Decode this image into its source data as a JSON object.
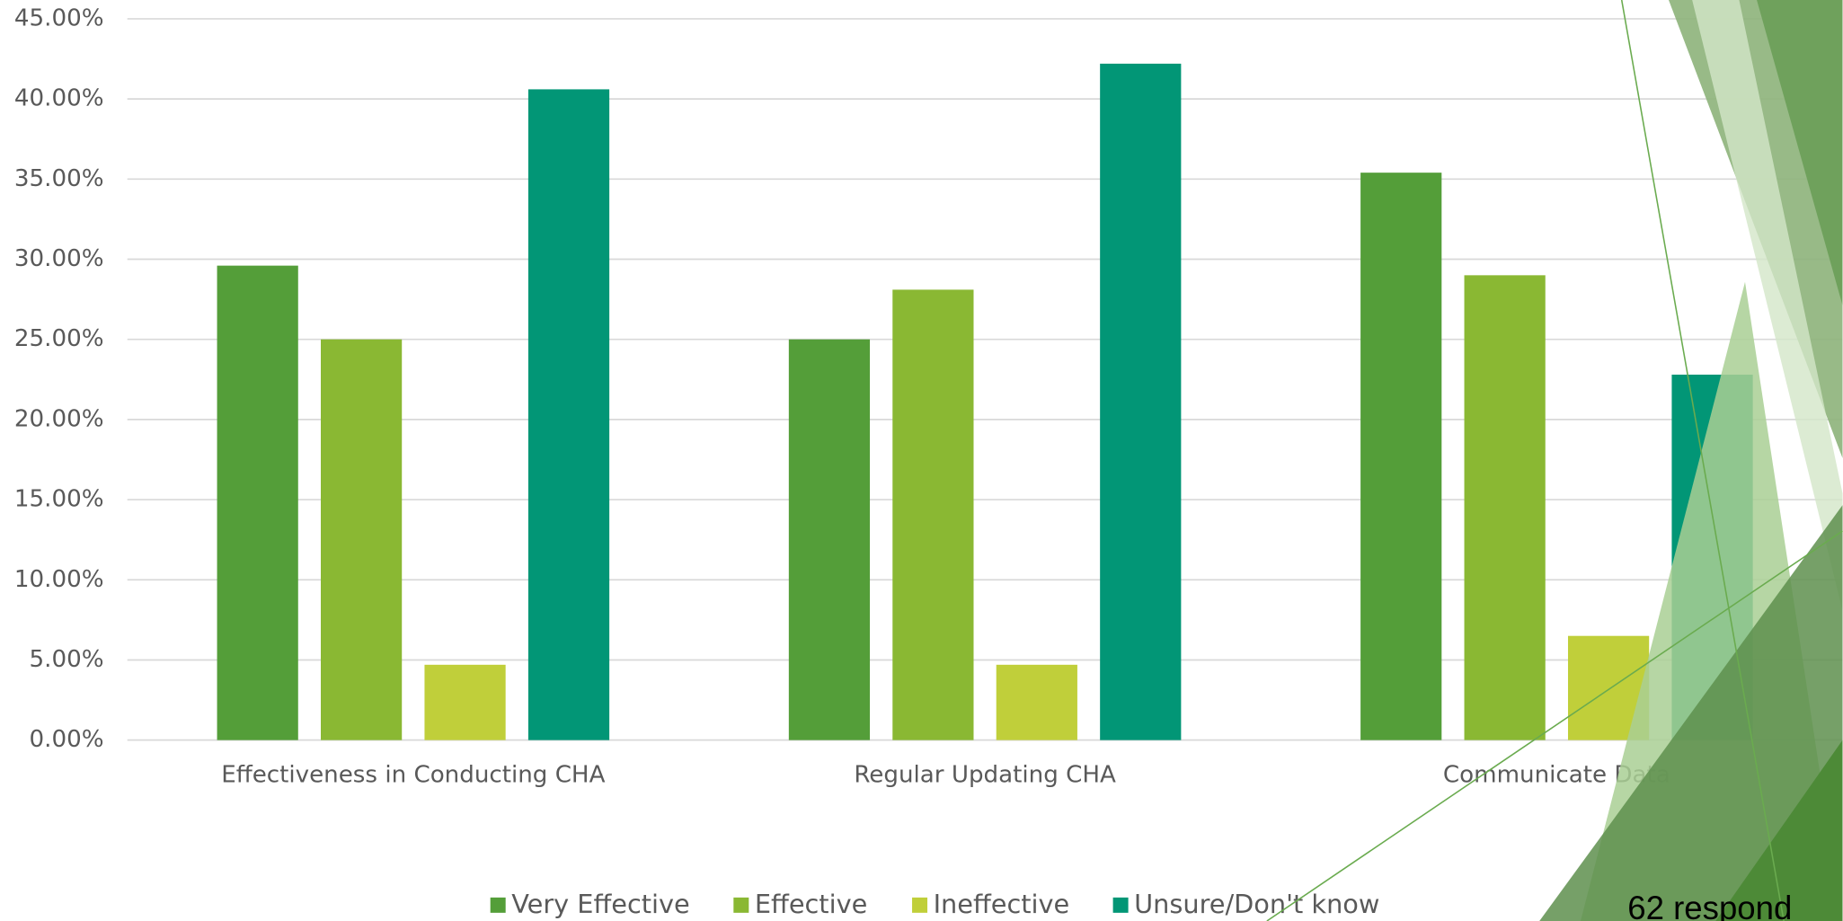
{
  "chart_data": {
    "type": "bar",
    "categories": [
      "Effectiveness in Conducting CHA",
      "Regular Updating CHA",
      "Communicate Data"
    ],
    "series": [
      {
        "name": "Very Effective",
        "color": "#549e39",
        "values": [
          29.6,
          25.0,
          35.4
        ]
      },
      {
        "name": "Effective",
        "color": "#8ab833",
        "values": [
          25.0,
          28.1,
          29.0
        ]
      },
      {
        "name": "Ineffective",
        "color": "#c0cf3a",
        "values": [
          4.7,
          4.7,
          6.5
        ]
      },
      {
        "name": "Unsure/Don't know",
        "color": "#029676",
        "values": [
          40.6,
          42.2,
          22.8
        ]
      }
    ],
    "ylim": [
      0,
      45
    ],
    "yticks": [
      {
        "value": 0,
        "label": "0.00%"
      },
      {
        "value": 5,
        "label": "5.00%"
      },
      {
        "value": 10,
        "label": "10.00%"
      },
      {
        "value": 15,
        "label": "15.00%"
      },
      {
        "value": 20,
        "label": "20.00%"
      },
      {
        "value": 25,
        "label": "25.00%"
      },
      {
        "value": 30,
        "label": "30.00%"
      },
      {
        "value": 35,
        "label": "35.00%"
      },
      {
        "value": 40,
        "label": "40.00%"
      },
      {
        "value": 45,
        "label": "45.00%"
      }
    ],
    "grid": true,
    "legend": "bottom",
    "annotation": "62 respond"
  }
}
